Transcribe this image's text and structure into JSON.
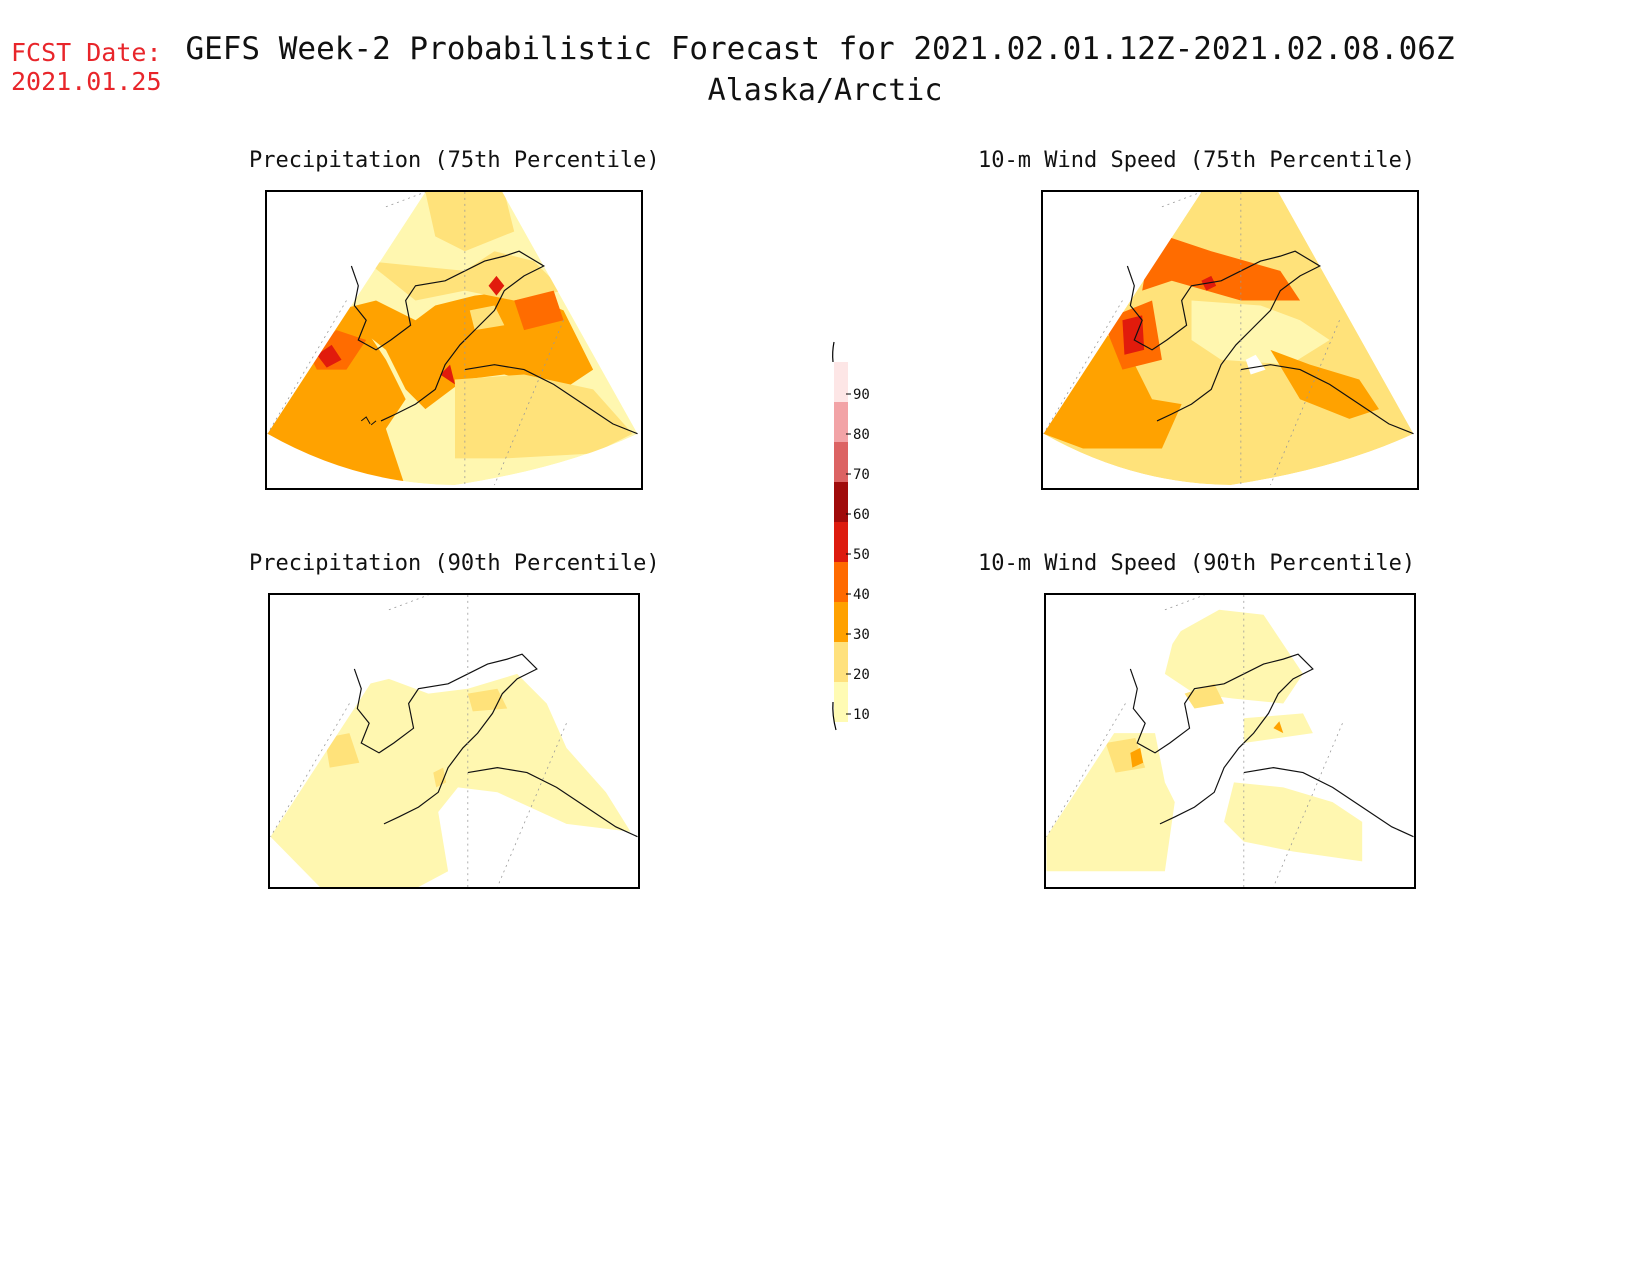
{
  "header": {
    "fcst_label": "FCST Date:",
    "fcst_date": "2021.01.25",
    "title": "GEFS Week-2 Probabilistic Forecast for 2021.02.01.12Z-2021.02.08.06Z",
    "region": "Alaska/Arctic"
  },
  "panels": [
    {
      "title": "Precipitation (75th Percentile)"
    },
    {
      "title": "10-m Wind Speed (75th Percentile)"
    },
    {
      "title": "Precipitation (90th Percentile)"
    },
    {
      "title": "10-m Wind Speed (90th Percentile)"
    }
  ],
  "colorbar": {
    "labels": [
      "90",
      "80",
      "70",
      "60",
      "50",
      "40",
      "30",
      "20",
      "10"
    ],
    "colors": [
      "#fde6e6",
      "#f2a3a6",
      "#dc6363",
      "#a00b0b",
      "#dd1b0e",
      "#ff6a00",
      "#ffa100",
      "#ffe17d",
      "#fffbb4"
    ]
  },
  "legend_colors": {
    "c10": "#fff7b0",
    "c20": "#ffe27a",
    "c30": "#ffa200",
    "c40": "#ff6c00",
    "c50": "#e11b0c"
  }
}
